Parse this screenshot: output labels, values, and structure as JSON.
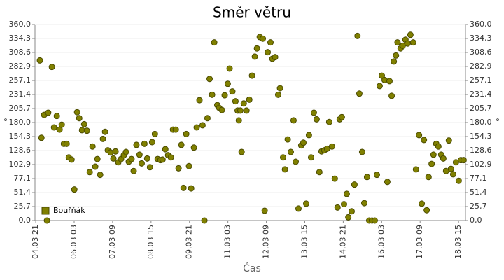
{
  "chart_data": {
    "type": "scatter",
    "title": "Směr větru",
    "xlabel": "Čas",
    "ylabel": "°",
    "series": [
      {
        "name": "Bouřňák",
        "color": "#808000",
        "x": [
          5.01,
          5.06,
          5.15,
          5.24,
          5.28,
          5.4,
          5.47,
          5.56,
          5.65,
          5.72,
          5.79,
          5.88,
          5.95,
          6.04,
          6.13,
          6.22,
          6.29,
          6.38,
          6.45,
          6.54,
          6.63,
          6.72,
          6.81,
          6.88,
          6.97,
          7.06,
          7.13,
          7.22,
          7.31,
          7.4,
          7.47,
          7.56,
          7.65,
          7.74,
          7.81,
          7.9,
          7.99,
          8.06,
          8.15,
          8.25,
          8.32,
          8.41,
          8.5,
          8.59,
          8.66,
          8.75,
          8.84,
          8.93,
          9.0,
          9.09,
          9.18,
          9.27,
          9.34,
          9.43,
          9.52,
          9.61,
          9.68,
          9.77,
          9.86,
          9.93,
          10.02,
          10.11,
          10.2,
          10.3,
          10.36,
          10.46,
          10.53,
          10.61,
          10.68,
          10.78,
          10.84,
          10.93,
          11.02,
          11.12,
          11.18,
          11.27,
          11.37,
          11.44,
          11.48,
          11.53,
          11.57,
          11.64,
          11.73,
          11.82,
          11.91,
          12.0,
          12.07,
          12.16,
          12.26,
          12.32,
          12.42,
          12.51,
          12.57,
          12.66,
          12.76,
          12.82,
          12.92,
          12.98,
          13.07,
          13.17,
          13.26,
          13.33,
          13.42,
          13.51,
          13.58,
          13.67,
          13.76,
          13.83,
          13.92,
          14.01,
          14.1,
          14.17,
          14.26,
          14.35,
          14.42,
          14.51,
          14.6,
          14.69,
          14.76,
          14.83,
          14.9,
          14.99,
          15.04,
          15.15,
          15.24,
          15.34,
          15.4,
          15.49,
          15.56,
          15.65,
          15.72,
          15.81,
          15.9,
          15.97,
          16.06,
          16.13,
          16.22,
          16.31,
          16.38,
          16.45,
          16.52,
          16.59,
          16.64,
          16.74,
          16.81,
          16.9,
          16.97,
          17.06,
          17.15,
          17.24,
          17.34,
          17.43,
          17.5,
          17.59,
          17.65,
          17.75,
          17.81,
          17.9,
          17.97,
          18.06,
          18.13,
          18.22,
          18.31,
          18.38,
          18.45,
          18.54,
          18.63,
          18.7,
          18.79
        ],
        "values": [
          294,
          152,
          194,
          0,
          198,
          282,
          171,
          192,
          167,
          176,
          141,
          141,
          116,
          112,
          57,
          199,
          188,
          166,
          177,
          165,
          89,
          136,
          99,
          113,
          84,
          150,
          163,
          129,
          125,
          114,
          127,
          107,
          113,
          120,
          126,
          108,
          113,
          91,
          139,
          121,
          105,
          141,
          114,
          98,
          144,
          159,
          113,
          111,
          112,
          131,
          120,
          116,
          167,
          167,
          96,
          139,
          60,
          159,
          100,
          59,
          134,
          171,
          221,
          175,
          0,
          188,
          260,
          231,
          327,
          212,
          207,
          203,
          230,
          251,
          279,
          237,
          219,
          202,
          184,
          202,
          126,
          215,
          202,
          222,
          266,
          301,
          316,
          337,
          334,
          18,
          309,
          327,
          297,
          300,
          231,
          243,
          116,
          94,
          149,
          126,
          184,
          108,
          22,
          138,
          143,
          31,
          157,
          116,
          198,
          186,
          89,
          127,
          129,
          132,
          181,
          136,
          77,
          24,
          186,
          190,
          30,
          49,
          6,
          17,
          66,
          339,
          233,
          126,
          32,
          80,
          0,
          0,
          0,
          84,
          247,
          266,
          258,
          71,
          256,
          229,
          292,
          303,
          327,
          316,
          321,
          332,
          325,
          341,
          327,
          94,
          157,
          31,
          148,
          19,
          80,
          104,
          121,
          141,
          136,
          121,
          114,
          91,
          147,
          95,
          85,
          107,
          73,
          111,
          111
        ]
      }
    ],
    "xlim": [
      4.85,
      18.85
    ],
    "xticks": [
      {
        "value": 4.875,
        "label": "04.03 21"
      },
      {
        "value": 6.125,
        "label": "06.03 03"
      },
      {
        "value": 7.375,
        "label": "07.03 09"
      },
      {
        "value": 8.625,
        "label": "08.03 15"
      },
      {
        "value": 9.875,
        "label": "09.03 21"
      },
      {
        "value": 11.125,
        "label": "11.03 03"
      },
      {
        "value": 12.375,
        "label": "12.03 09"
      },
      {
        "value": 13.625,
        "label": "13.03 15"
      },
      {
        "value": 14.875,
        "label": "14.03 21"
      },
      {
        "value": 16.125,
        "label": "16.03 03"
      },
      {
        "value": 17.375,
        "label": "17.03 09"
      },
      {
        "value": 18.625,
        "label": "18.03 15"
      }
    ],
    "ylim": [
      0,
      360
    ],
    "yticks": [
      {
        "value": 0,
        "label": "0,0"
      },
      {
        "value": 25.7,
        "label": "25,7"
      },
      {
        "value": 51.4,
        "label": "51,4"
      },
      {
        "value": 77.1,
        "label": "77,1"
      },
      {
        "value": 102.9,
        "label": "102,9"
      },
      {
        "value": 128.6,
        "label": "128,6"
      },
      {
        "value": 154.3,
        "label": "154,3"
      },
      {
        "value": 180,
        "label": "180,0"
      },
      {
        "value": 205.7,
        "label": "205,7"
      },
      {
        "value": 231.4,
        "label": "231,4"
      },
      {
        "value": 257.1,
        "label": "257,1"
      },
      {
        "value": 282.9,
        "label": "282,9"
      },
      {
        "value": 308.6,
        "label": "308,6"
      },
      {
        "value": 334.3,
        "label": "334,3"
      },
      {
        "value": 360,
        "label": "360,0"
      }
    ],
    "grid": true,
    "legend": "lower left"
  }
}
